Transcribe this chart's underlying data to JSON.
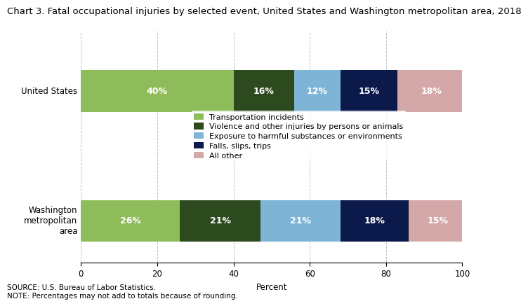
{
  "title": "Chart 3. Fatal occupational injuries by selected event, United States and Washington metropolitan area, 2018",
  "categories": [
    "United States",
    "Washington\nmetropolitan\narea"
  ],
  "segments": [
    {
      "label": "Transportation incidents",
      "color": "#8FBC5A",
      "values": [
        40,
        26
      ]
    },
    {
      "label": "Violence and other injuries by persons or animals",
      "color": "#2D4A1E",
      "values": [
        16,
        21
      ]
    },
    {
      "label": "Exposure to harmful substances or environments",
      "color": "#7EB5D6",
      "values": [
        12,
        21
      ]
    },
    {
      "label": "Falls, slips, trips",
      "color": "#0C1A4B",
      "values": [
        15,
        18
      ]
    },
    {
      "label": "All other",
      "color": "#D4A8A8",
      "values": [
        18,
        15
      ]
    }
  ],
  "xlabel": "Percent",
  "xlim": [
    0,
    100
  ],
  "xticks": [
    0,
    20,
    40,
    60,
    80,
    100
  ],
  "grid_color": "#C0C0C0",
  "bar_height": 0.45,
  "label_fontsize": 9,
  "tick_fontsize": 8.5,
  "title_fontsize": 9.5,
  "legend_fontsize": 8,
  "source_text": "SOURCE: U.S. Bureau of Labor Statistics.\nNOTE: Percentages may not add to totals because of rounding.",
  "text_color": "#FFFFFF"
}
